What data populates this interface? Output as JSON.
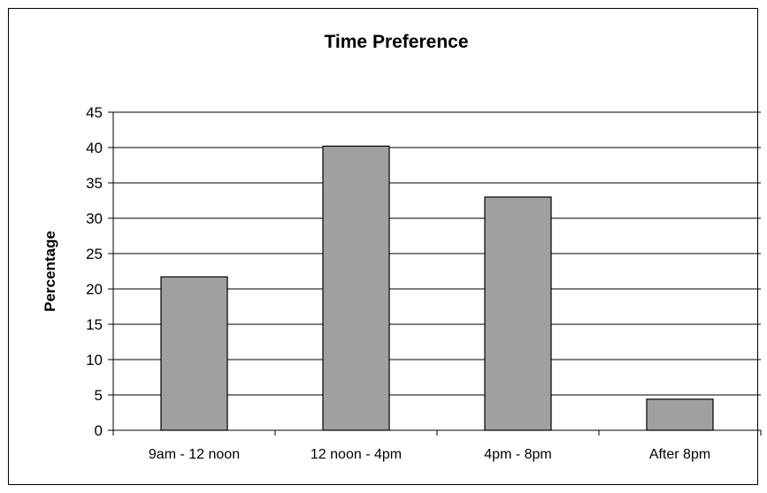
{
  "chart_data": {
    "type": "bar",
    "title": "Time Preference",
    "xlabel": "",
    "ylabel": "Percentage",
    "categories": [
      "9am - 12 noon",
      "12 noon - 4pm",
      "4pm - 8pm",
      "After 8pm"
    ],
    "values": [
      21.7,
      40.2,
      33.0,
      4.4
    ],
    "ylim": [
      0,
      45
    ],
    "yticks": [
      "0",
      "5",
      "10",
      "15",
      "20",
      "25",
      "30",
      "35",
      "40",
      "45"
    ],
    "grid": true,
    "legend": "none",
    "colors": {
      "bar_fill": "#a0a0a0",
      "bar_stroke": "#000000",
      "grid": "#000000",
      "background": "#ffffff"
    }
  }
}
